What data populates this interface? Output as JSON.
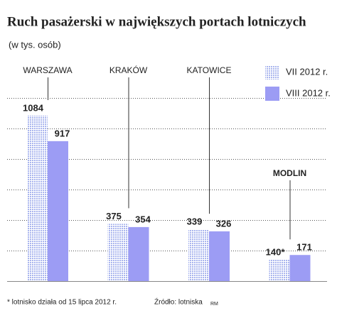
{
  "chart_data": {
    "type": "bar",
    "title": "Ruch pasażerski w największych portach lotniczych",
    "subtitle": "(w tys. osób)",
    "categories": [
      "WARSZAWA",
      "KRAKÓW",
      "KATOWICE",
      "MODLIN"
    ],
    "category_label_colors": [
      "#222222",
      "#222222",
      "#222222",
      "#d0211c"
    ],
    "series": [
      {
        "name": "VII 2012 r.",
        "color": "#a9b5ee",
        "pattern": "dots",
        "values": [
          1084,
          375,
          339,
          140
        ],
        "value_labels": [
          "1084",
          "375",
          "339",
          "140*"
        ]
      },
      {
        "name": "VIII 2012 r.",
        "color": "#9c9cf4",
        "pattern": "solid",
        "values": [
          917,
          354,
          326,
          171
        ]
      }
    ],
    "ylim": [
      0,
      1300
    ],
    "yticks": [
      200,
      400,
      600,
      800,
      1000,
      1200
    ],
    "grid": true,
    "legend": "top-right",
    "note": "* lotnisko działa od 15 lipca 2012 r.",
    "source": "Źródło: lotniska",
    "credit": "RM"
  }
}
